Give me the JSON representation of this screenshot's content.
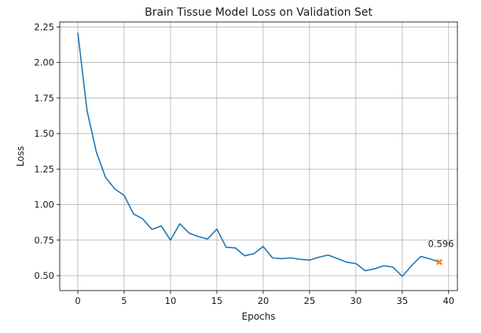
{
  "chart_data": {
    "type": "line",
    "title": "Brain Tissue Model Loss on Validation Set",
    "xlabel": "Epochs",
    "ylabel": "Loss",
    "xlim": [
      -1.95,
      40.95
    ],
    "ylim": [
      0.395,
      2.285
    ],
    "xticks": [
      0,
      5,
      10,
      15,
      20,
      25,
      30,
      35,
      40
    ],
    "yticks": [
      0.5,
      0.75,
      1.0,
      1.25,
      1.5,
      1.75,
      2.0,
      2.25
    ],
    "xtick_labels": [
      "0",
      "5",
      "10",
      "15",
      "20",
      "25",
      "30",
      "35",
      "40"
    ],
    "ytick_labels": [
      "0.50",
      "0.75",
      "1.00",
      "1.25",
      "1.50",
      "1.75",
      "2.00",
      "2.25"
    ],
    "grid": true,
    "series": [
      {
        "color": "#1f77b4",
        "x": [
          0,
          1,
          2,
          3,
          4,
          5,
          6,
          7,
          8,
          9,
          10,
          11,
          12,
          13,
          14,
          15,
          16,
          17,
          18,
          19,
          20,
          21,
          22,
          23,
          24,
          25,
          26,
          27,
          28,
          29,
          30,
          31,
          32,
          33,
          34,
          35,
          36,
          37,
          38,
          39
        ],
        "y": [
          2.21,
          1.66,
          1.37,
          1.19,
          1.11,
          1.065,
          0.935,
          0.9,
          0.825,
          0.85,
          0.75,
          0.865,
          0.8,
          0.775,
          0.758,
          0.828,
          0.7,
          0.695,
          0.64,
          0.655,
          0.705,
          0.625,
          0.62,
          0.625,
          0.615,
          0.61,
          0.63,
          0.645,
          0.62,
          0.595,
          0.585,
          0.535,
          0.548,
          0.57,
          0.56,
          0.495,
          0.57,
          0.635,
          0.618,
          0.596
        ]
      }
    ],
    "highlight": {
      "x": 39,
      "y": 0.596,
      "color": "#ff7f0e",
      "marker": "x",
      "label": "0.596"
    }
  }
}
